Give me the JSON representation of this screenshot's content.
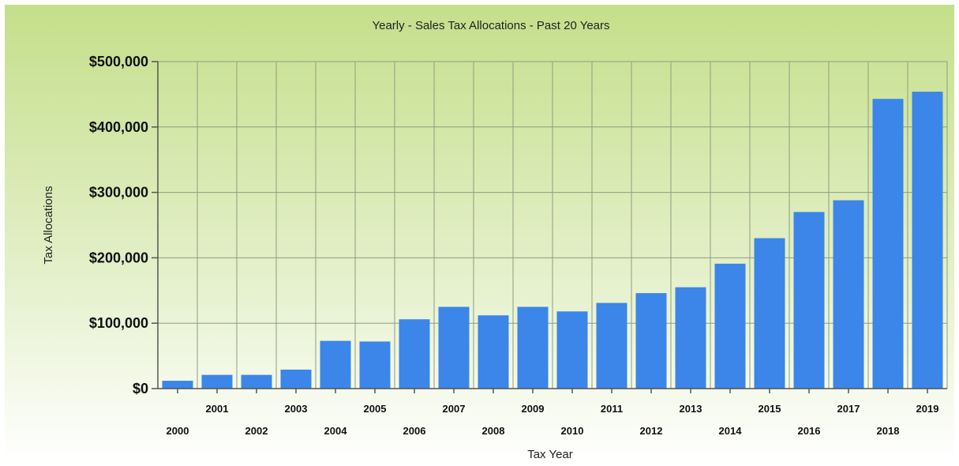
{
  "colors": {
    "bar": "#3b86e8",
    "grid": "#8f9c80",
    "axis": "#555555",
    "bg_top": "#c4df8a",
    "bg_bottom": "#ffffff"
  },
  "chart_data": {
    "type": "bar",
    "title": "Yearly - Sales Tax Allocations - Past 20 Years",
    "xlabel": "Tax Year",
    "ylabel": "Tax Allocations",
    "categories": [
      "2000",
      "2001",
      "2002",
      "2003",
      "2004",
      "2005",
      "2006",
      "2007",
      "2008",
      "2009",
      "2010",
      "2011",
      "2012",
      "2013",
      "2014",
      "2015",
      "2016",
      "2017",
      "2018",
      "2019"
    ],
    "values": [
      12000,
      21000,
      21000,
      29000,
      73000,
      72000,
      106000,
      125000,
      112000,
      125000,
      118000,
      131000,
      146000,
      155000,
      191000,
      230000,
      270000,
      288000,
      443000,
      454000
    ],
    "ylim": [
      0,
      500000
    ],
    "yticks": [
      0,
      100000,
      200000,
      300000,
      400000,
      500000
    ],
    "ytick_labels": [
      "$0",
      "$100,000",
      "$200,000",
      "$300,000",
      "$400,000",
      "$500,000"
    ],
    "grid": true,
    "legend": "none"
  }
}
